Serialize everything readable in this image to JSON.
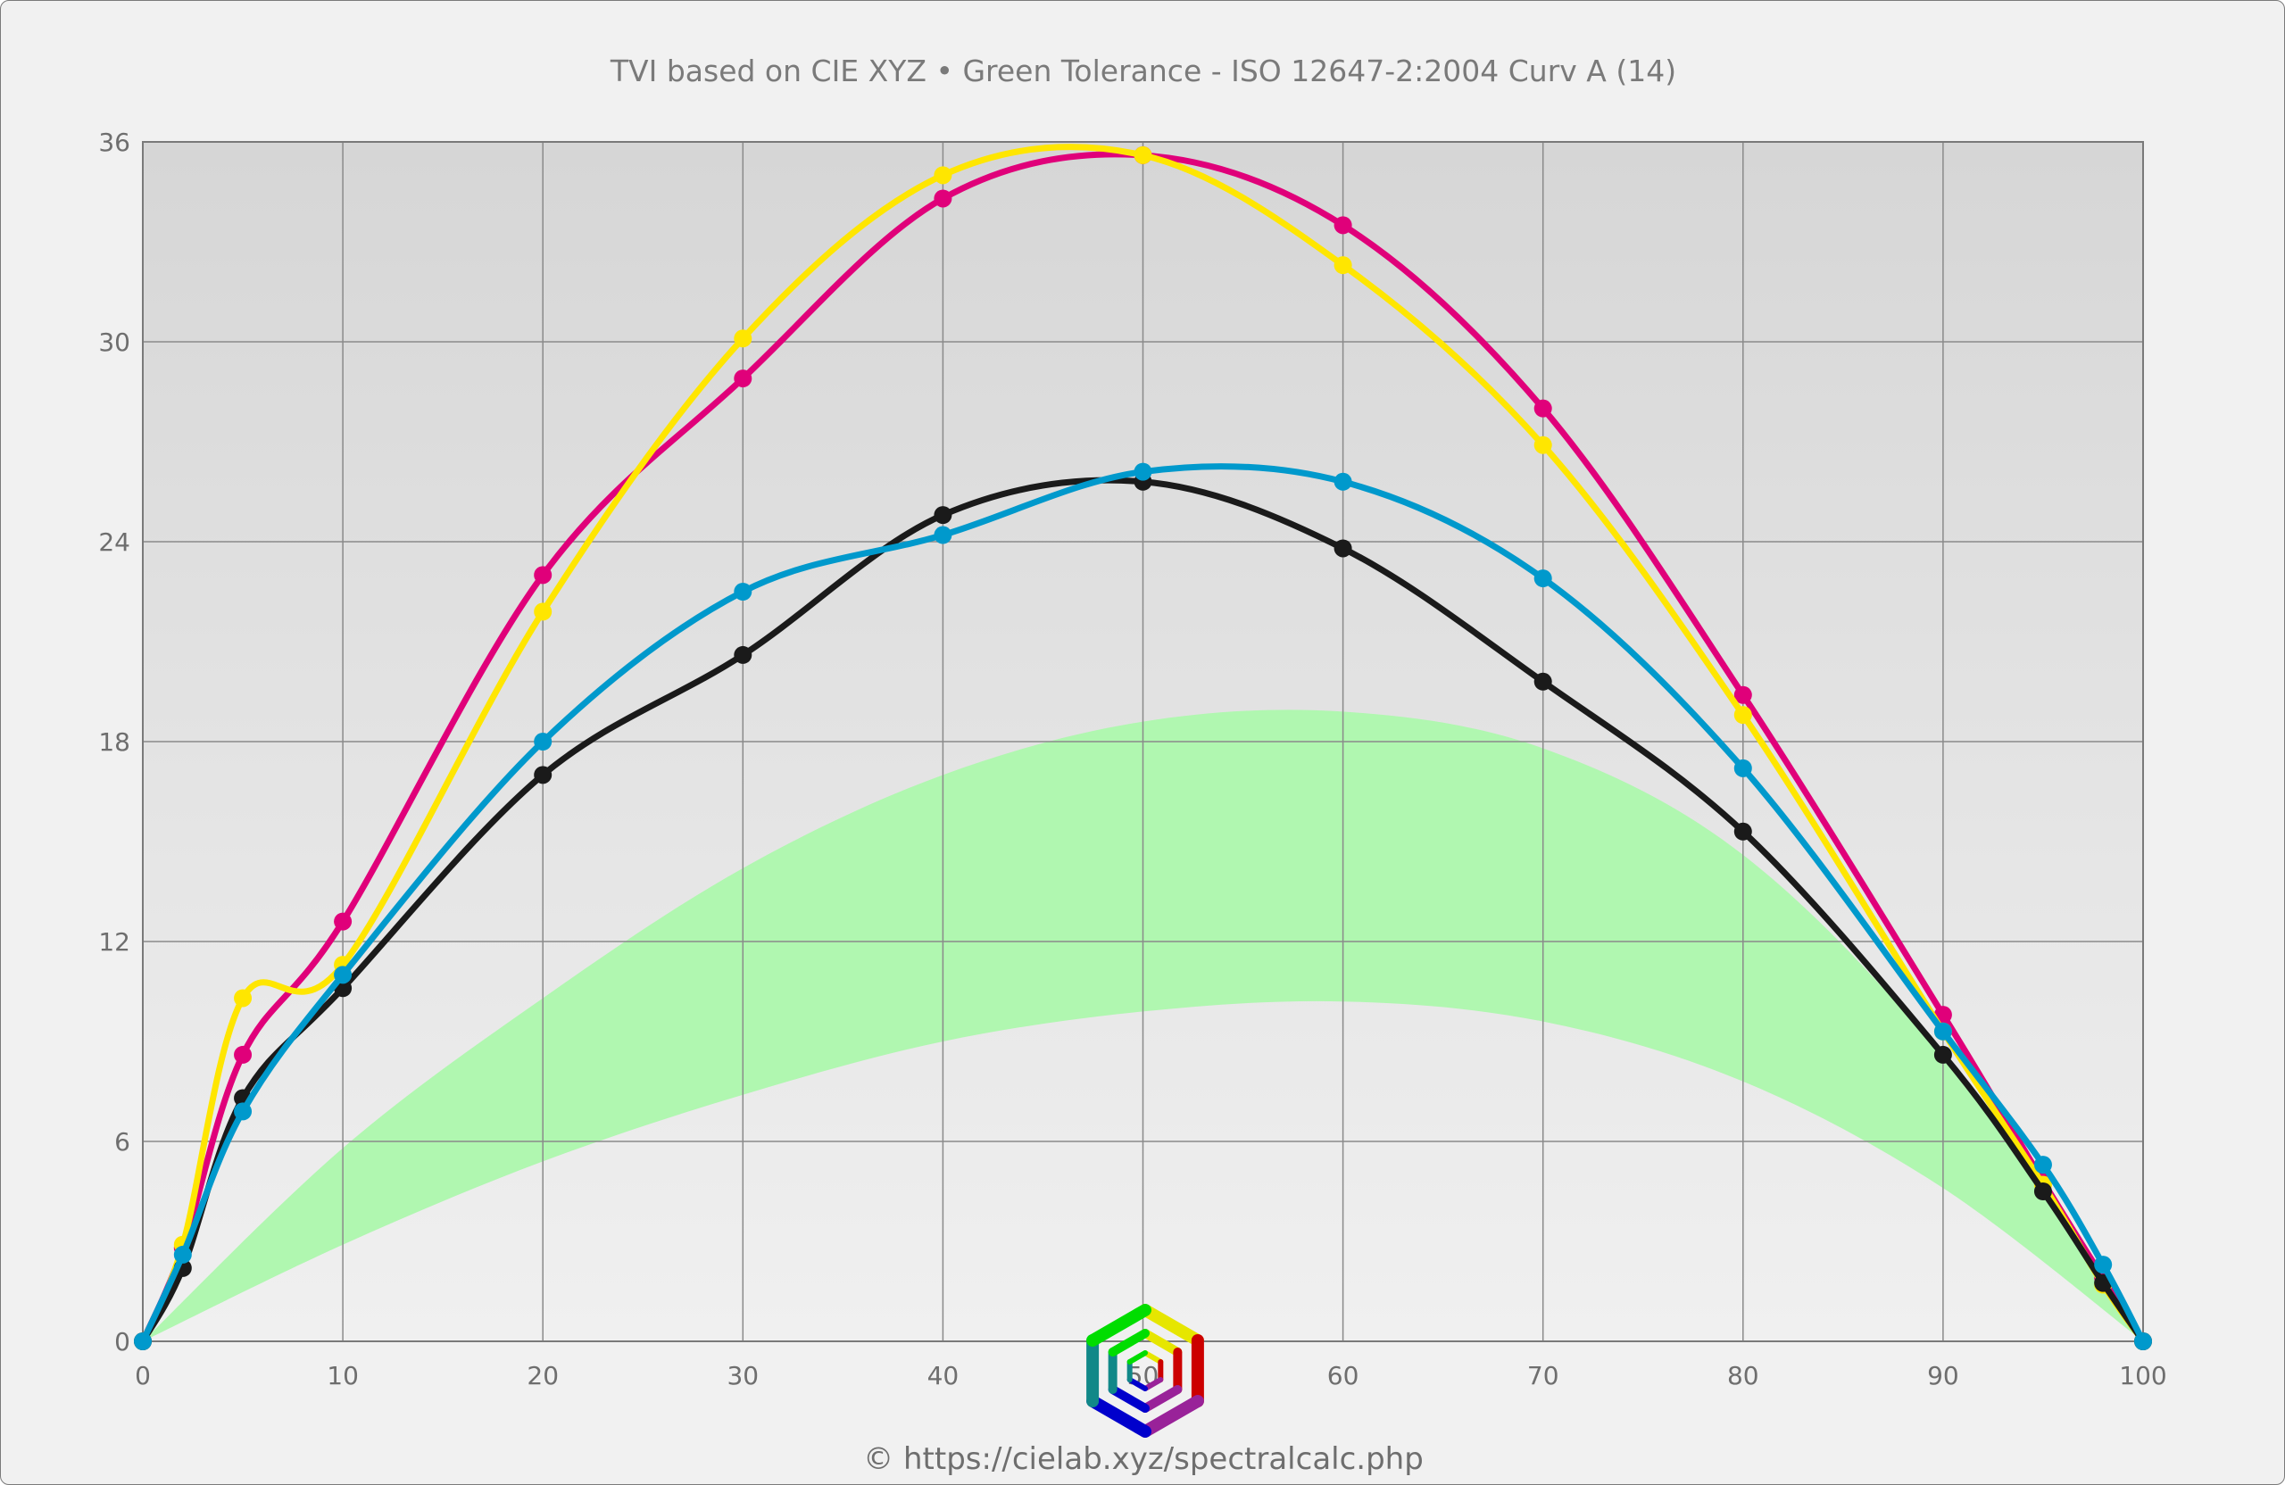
{
  "chart_data": {
    "type": "line",
    "title": "TVI based on CIE XYZ  •  Green Tolerance - ISO 12647-2:2004 Curv A (14)",
    "credit": "© https://cielab.xyz/spectralcalc.php",
    "xlabel": "",
    "ylabel": "",
    "xlim": [
      0,
      100
    ],
    "ylim": [
      0,
      36
    ],
    "xticks": [
      0,
      10,
      20,
      30,
      40,
      50,
      60,
      70,
      80,
      90,
      100
    ],
    "yticks": [
      0,
      6,
      12,
      18,
      24,
      30,
      36
    ],
    "grid": true,
    "x": [
      0,
      2,
      5,
      10,
      20,
      30,
      40,
      50,
      60,
      70,
      80,
      90,
      95,
      98,
      100
    ],
    "series": [
      {
        "color": "#e0007a",
        "values": [
          0,
          2.8,
          8.6,
          12.6,
          23.0,
          28.9,
          34.3,
          35.6,
          33.5,
          28.0,
          19.4,
          9.8,
          4.8,
          1.9,
          0
        ]
      },
      {
        "color": "#ffe600",
        "values": [
          0,
          2.9,
          10.3,
          11.3,
          21.9,
          30.1,
          35.0,
          35.6,
          32.3,
          26.9,
          18.8,
          9.3,
          4.7,
          1.7,
          0
        ]
      },
      {
        "color": "#1a1a1a",
        "values": [
          0,
          2.2,
          7.3,
          10.6,
          17.0,
          20.6,
          24.8,
          25.8,
          23.8,
          19.8,
          15.3,
          8.6,
          4.5,
          1.75,
          0
        ]
      },
      {
        "color": "#0099cc",
        "values": [
          0,
          2.6,
          6.9,
          11.0,
          18.0,
          22.5,
          24.2,
          26.1,
          25.8,
          22.9,
          17.2,
          9.3,
          5.3,
          2.3,
          0
        ]
      }
    ],
    "tolerance_band": {
      "color": "#b0f7b0",
      "x": [
        0,
        10,
        20,
        30,
        40,
        50,
        60,
        70,
        80,
        90,
        100
      ],
      "lower": [
        0,
        2.9,
        5.4,
        7.4,
        9.0,
        9.9,
        10.2,
        9.6,
        7.8,
        4.6,
        0
      ],
      "upper": [
        0,
        5.8,
        10.3,
        14.2,
        17.0,
        18.6,
        18.9,
        17.8,
        14.6,
        8.5,
        0
      ]
    }
  }
}
